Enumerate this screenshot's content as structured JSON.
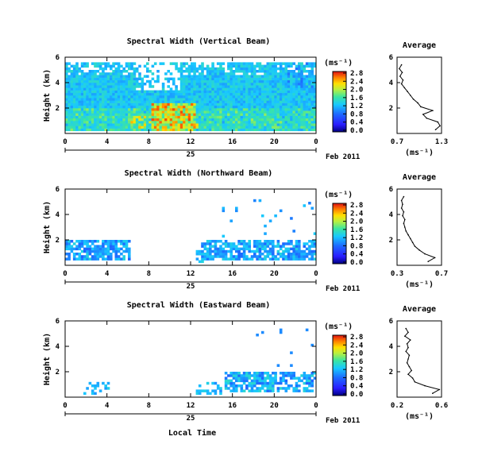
{
  "chart_data": [
    {
      "type": "heatmap",
      "title": "Spectral Width (Vertical Beam)",
      "ylabel": "Height (km)",
      "xlabel": "",
      "x_ticks": [
        "0",
        "4",
        "8",
        "12",
        "16",
        "20",
        "0"
      ],
      "y_ticks": [
        "2",
        "4",
        "6"
      ],
      "ylim": [
        0,
        6
      ],
      "xlim": [
        0,
        24
      ],
      "date_day": "25",
      "date_label": "Feb 2011",
      "colorbar": {
        "unit": "(ms⁻¹)",
        "ticks": [
          "0.0",
          "0.4",
          "0.8",
          "1.2",
          "1.6",
          "2.0",
          "2.4",
          "2.8"
        ]
      },
      "summary": "Echoes cover 0–5.5 km through the full day; widths mostly 0.4–1.2 ms⁻¹ with a strong maximum of 2.0–2.8 ms⁻¹ around 08–12 LT below 2 km",
      "average_profile": {
        "title": "Average",
        "unit": "(ms⁻¹)",
        "xlim": [
          0.7,
          1.3
        ],
        "x_ticks": [
          "0.7",
          "1.3"
        ],
        "y_ticks": [
          "2",
          "4",
          "6"
        ],
        "height_km": [
          0.3,
          0.6,
          0.9,
          1.2,
          1.5,
          1.8,
          2.1,
          2.4,
          2.7,
          3.0,
          3.3,
          3.6,
          3.9,
          4.2,
          4.5,
          4.8,
          5.1,
          5.4
        ],
        "value": [
          1.22,
          1.28,
          1.25,
          1.1,
          1.05,
          1.18,
          1.02,
          0.98,
          0.92,
          0.88,
          0.84,
          0.8,
          0.76,
          0.78,
          0.74,
          0.77,
          0.73,
          0.76
        ]
      }
    },
    {
      "type": "heatmap",
      "title": "Spectral Width (Northward Beam)",
      "ylabel": "Height (km)",
      "xlabel": "",
      "x_ticks": [
        "0",
        "4",
        "8",
        "12",
        "16",
        "20",
        "0"
      ],
      "y_ticks": [
        "2",
        "4",
        "6"
      ],
      "ylim": [
        0,
        6
      ],
      "xlim": [
        0,
        24
      ],
      "date_day": "25",
      "date_label": "Feb 2011",
      "colorbar": {
        "unit": "(ms⁻¹)",
        "ticks": [
          "0.0",
          "0.4",
          "0.8",
          "1.2",
          "1.6",
          "2.0",
          "2.4",
          "2.8"
        ]
      },
      "summary": "Echoes mainly below 2 km (00–06 LT and 13–24 LT) with widths 0.4–1.0 ms⁻¹; sparse returns up to 5.5 km",
      "average_profile": {
        "title": "Average",
        "unit": "(ms⁻¹)",
        "xlim": [
          0.3,
          0.7
        ],
        "x_ticks": [
          "0.3",
          "0.7"
        ],
        "y_ticks": [
          "2",
          "4",
          "6"
        ],
        "height_km": [
          0.3,
          0.6,
          0.9,
          1.2,
          1.5,
          1.8,
          2.1,
          2.4,
          2.7,
          3.0,
          3.3,
          3.6,
          3.9,
          4.2,
          4.5,
          4.8,
          5.1,
          5.4
        ],
        "value": [
          0.58,
          0.64,
          0.55,
          0.5,
          0.46,
          0.44,
          0.42,
          0.4,
          0.38,
          0.37,
          0.36,
          0.37,
          0.35,
          0.36,
          0.34,
          0.35,
          0.34,
          0.36
        ]
      }
    },
    {
      "type": "heatmap",
      "title": "Spectral Width (Eastward Beam)",
      "ylabel": "Height (km)",
      "xlabel": "Local Time",
      "x_ticks": [
        "0",
        "4",
        "8",
        "12",
        "16",
        "20",
        "0"
      ],
      "y_ticks": [
        "2",
        "4",
        "6"
      ],
      "ylim": [
        0,
        6
      ],
      "xlim": [
        0,
        24
      ],
      "date_day": "25",
      "date_label": "Feb 2011",
      "colorbar": {
        "unit": "(ms⁻¹)",
        "ticks": [
          "0.0",
          "0.4",
          "0.8",
          "1.2",
          "1.6",
          "2.0",
          "2.4",
          "2.8"
        ]
      },
      "summary": "Echoes mainly below 2 km between 15–24 LT with widths 0.4–1.0 ms⁻¹; a few scattered returns elsewhere",
      "average_profile": {
        "title": "Average",
        "unit": "(ms⁻¹)",
        "xlim": [
          0.2,
          0.6
        ],
        "x_ticks": [
          "0.2",
          "0.6"
        ],
        "y_ticks": [
          "2",
          "4",
          "6"
        ],
        "height_km": [
          0.3,
          0.6,
          0.9,
          1.2,
          1.5,
          1.8,
          2.1,
          2.4,
          2.7,
          3.0,
          3.3,
          3.6,
          3.9,
          4.2,
          4.5,
          4.8,
          5.1,
          5.4
        ],
        "value": [
          0.52,
          0.58,
          0.45,
          0.36,
          0.34,
          0.3,
          0.33,
          0.31,
          0.29,
          0.3,
          0.31,
          0.28,
          0.3,
          0.29,
          0.32,
          0.27,
          0.3,
          0.28
        ]
      }
    }
  ]
}
